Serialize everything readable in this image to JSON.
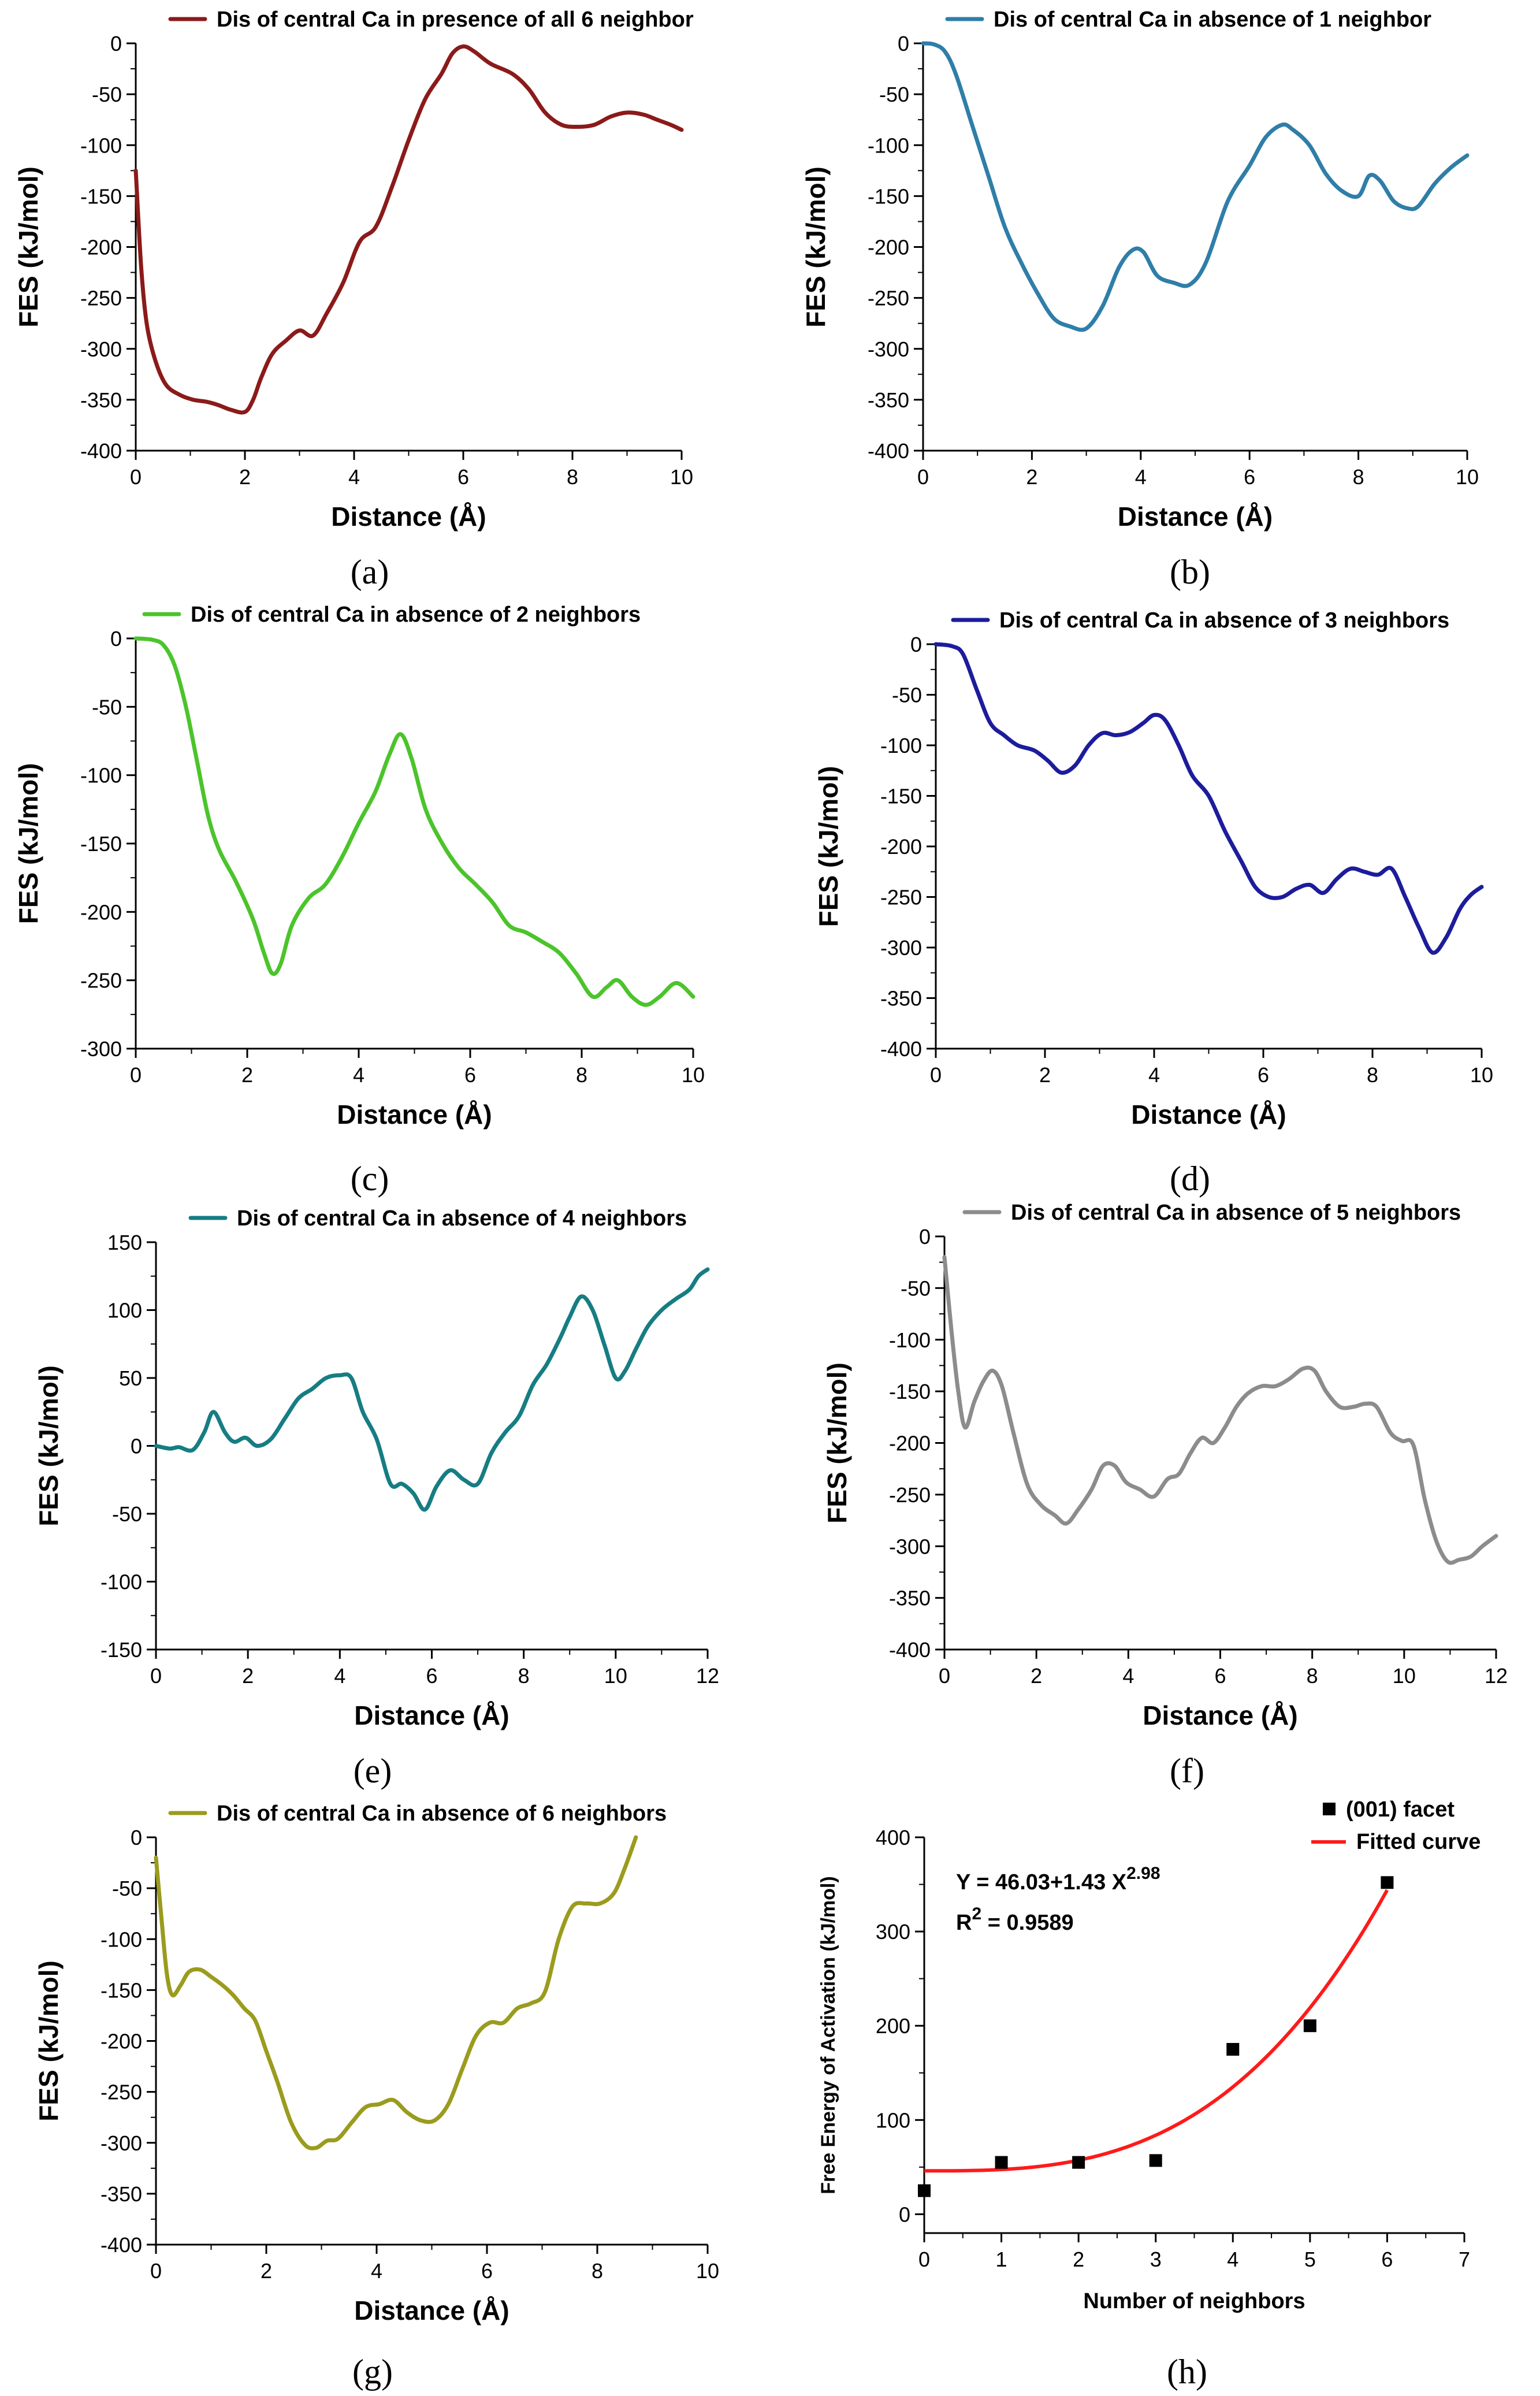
{
  "chart_data": [
    {
      "panel": "a",
      "caption": "(a)",
      "type": "line",
      "color": "#8b1a1a",
      "legend": "Dis of central Ca in presence of all 6 neighbor",
      "xlabel": "Distance (Å)",
      "ylabel": "FES (kJ/mol)",
      "xlim": [
        0,
        10
      ],
      "ylim": [
        -400,
        0
      ],
      "xticks": [
        0,
        2,
        4,
        6,
        8,
        10
      ],
      "yticks": [
        -400,
        -350,
        -300,
        -250,
        -200,
        -150,
        -100,
        -50,
        0
      ],
      "x": [
        0,
        0.1,
        0.2,
        0.35,
        0.55,
        0.8,
        1.05,
        1.3,
        1.5,
        1.75,
        2.0,
        2.15,
        2.3,
        2.5,
        2.75,
        3.0,
        3.25,
        3.5,
        3.8,
        4.1,
        4.4,
        4.7,
        5.0,
        5.3,
        5.6,
        5.8,
        6.0,
        6.2,
        6.5,
        6.9,
        7.2,
        7.5,
        7.8,
        8.1,
        8.4,
        8.7,
        9.0,
        9.3,
        9.55,
        9.8,
        10.0
      ],
      "y": [
        -125,
        -220,
        -275,
        -310,
        -335,
        -345,
        -350,
        -352,
        -355,
        -360,
        -362,
        -350,
        -328,
        -305,
        -292,
        -282,
        -287,
        -265,
        -235,
        -195,
        -180,
        -140,
        -95,
        -55,
        -30,
        -10,
        -3,
        -8,
        -20,
        -30,
        -45,
        -68,
        -80,
        -82,
        -80,
        -72,
        -68,
        -70,
        -75,
        -80,
        -85
      ]
    },
    {
      "panel": "b",
      "caption": "(b)",
      "type": "line",
      "color": "#2f7ea8",
      "legend": "Dis of central Ca in absence of 1 neighbor",
      "xlabel": "Distance (Å)",
      "ylabel": "FES (kJ/mol)",
      "xlim": [
        0,
        10
      ],
      "ylim": [
        -400,
        0
      ],
      "xticks": [
        0,
        2,
        4,
        6,
        8,
        10
      ],
      "yticks": [
        -400,
        -350,
        -300,
        -250,
        -200,
        -150,
        -100,
        -50,
        0
      ],
      "x": [
        0,
        0.2,
        0.4,
        0.6,
        0.9,
        1.2,
        1.5,
        1.8,
        2.1,
        2.4,
        2.7,
        3.0,
        3.3,
        3.6,
        3.85,
        4.05,
        4.3,
        4.6,
        4.9,
        5.2,
        5.6,
        6.0,
        6.3,
        6.6,
        6.8,
        7.1,
        7.4,
        7.7,
        8.0,
        8.2,
        8.4,
        8.65,
        8.9,
        9.1,
        9.4,
        9.7,
        10.0
      ],
      "y": [
        0,
        -1,
        -8,
        -30,
        -80,
        -130,
        -180,
        -215,
        -245,
        -270,
        -278,
        -280,
        -258,
        -220,
        -203,
        -205,
        -228,
        -235,
        -237,
        -215,
        -155,
        -120,
        -92,
        -80,
        -85,
        -100,
        -128,
        -145,
        -150,
        -130,
        -135,
        -155,
        -162,
        -160,
        -138,
        -122,
        -110
      ]
    },
    {
      "panel": "c",
      "caption": "(c)",
      "type": "line",
      "color": "#4bc42b",
      "legend": "Dis of central Ca in absence of 2 neighbors",
      "xlabel": "Distance (Å)",
      "ylabel": "FES (kJ/mol)",
      "xlim": [
        0,
        10
      ],
      "ylim": [
        -300,
        0
      ],
      "xticks": [
        0,
        2,
        4,
        6,
        8,
        10
      ],
      "yticks": [
        -300,
        -250,
        -200,
        -150,
        -100,
        -50,
        0
      ],
      "x": [
        0,
        0.3,
        0.5,
        0.7,
        0.9,
        1.1,
        1.3,
        1.5,
        1.8,
        2.1,
        2.3,
        2.45,
        2.6,
        2.8,
        3.1,
        3.4,
        3.7,
        4.0,
        4.3,
        4.55,
        4.75,
        4.95,
        5.2,
        5.5,
        5.8,
        6.1,
        6.4,
        6.7,
        7.0,
        7.3,
        7.6,
        7.9,
        8.2,
        8.45,
        8.65,
        8.9,
        9.15,
        9.4,
        9.7,
        10.0
      ],
      "y": [
        0,
        -1,
        -5,
        -20,
        -50,
        -90,
        -130,
        -155,
        -178,
        -205,
        -230,
        -245,
        -238,
        -210,
        -190,
        -180,
        -160,
        -135,
        -112,
        -85,
        -70,
        -88,
        -125,
        -150,
        -168,
        -180,
        -193,
        -210,
        -215,
        -222,
        -230,
        -245,
        -262,
        -255,
        -250,
        -262,
        -268,
        -262,
        -252,
        -262
      ]
    },
    {
      "panel": "d",
      "caption": "(d)",
      "type": "line",
      "color": "#1c1c9c",
      "legend": "Dis of central Ca in absence of 3 neighbors",
      "xlabel": "Distance (Å)",
      "ylabel": "FES (kJ/mol)",
      "xlim": [
        0,
        10
      ],
      "ylim": [
        -400,
        0
      ],
      "xticks": [
        0,
        2,
        4,
        6,
        8,
        10
      ],
      "yticks": [
        -400,
        -350,
        -300,
        -250,
        -200,
        -150,
        -100,
        -50,
        0
      ],
      "x": [
        0,
        0.3,
        0.5,
        0.75,
        1.0,
        1.25,
        1.5,
        1.8,
        2.05,
        2.3,
        2.55,
        2.8,
        3.05,
        3.3,
        3.55,
        3.8,
        4.0,
        4.2,
        4.45,
        4.7,
        5.0,
        5.3,
        5.6,
        5.85,
        6.1,
        6.35,
        6.6,
        6.85,
        7.1,
        7.35,
        7.6,
        7.85,
        8.1,
        8.35,
        8.6,
        8.85,
        9.1,
        9.35,
        9.6,
        9.8,
        10.0
      ],
      "y": [
        0,
        -2,
        -10,
        -45,
        -78,
        -90,
        -100,
        -105,
        -115,
        -127,
        -120,
        -100,
        -88,
        -90,
        -87,
        -78,
        -70,
        -75,
        -100,
        -130,
        -150,
        -185,
        -215,
        -240,
        -250,
        -250,
        -242,
        -238,
        -246,
        -232,
        -222,
        -225,
        -228,
        -222,
        -250,
        -280,
        -305,
        -290,
        -262,
        -248,
        -240
      ]
    },
    {
      "panel": "e",
      "caption": "(e)",
      "type": "line",
      "color": "#167d83",
      "legend": "Dis of central Ca in absence of 4 neighbors",
      "xlabel": "Distance (Å)",
      "ylabel": "FES (kJ/mol)",
      "xlim": [
        0,
        12
      ],
      "ylim": [
        -150,
        150
      ],
      "xticks": [
        0,
        2,
        4,
        6,
        8,
        10,
        12
      ],
      "yticks": [
        -150,
        -100,
        -50,
        0,
        50,
        100,
        150
      ],
      "x": [
        0,
        0.3,
        0.5,
        0.8,
        1.05,
        1.25,
        1.5,
        1.7,
        1.95,
        2.2,
        2.5,
        2.8,
        3.1,
        3.4,
        3.7,
        4.0,
        4.25,
        4.5,
        4.8,
        5.1,
        5.35,
        5.6,
        5.85,
        6.1,
        6.4,
        6.7,
        7.0,
        7.3,
        7.6,
        7.9,
        8.2,
        8.5,
        8.8,
        9.0,
        9.25,
        9.5,
        9.75,
        10.0,
        10.2,
        10.45,
        10.7,
        11.0,
        11.3,
        11.6,
        11.8,
        12.0
      ],
      "y": [
        0,
        -2,
        -1,
        -3,
        10,
        25,
        10,
        3,
        6,
        0,
        5,
        20,
        35,
        42,
        50,
        52,
        50,
        25,
        5,
        -28,
        -28,
        -35,
        -47,
        -30,
        -18,
        -25,
        -28,
        -5,
        10,
        22,
        45,
        60,
        80,
        95,
        110,
        100,
        75,
        50,
        55,
        72,
        88,
        100,
        108,
        115,
        125,
        130
      ]
    },
    {
      "panel": "f",
      "caption": "(f)",
      "type": "line",
      "color": "#8c8c8c",
      "legend": "Dis of central Ca in absence of 5 neighbors",
      "xlabel": "Distance (Å)",
      "ylabel": "FES (kJ/mol)",
      "xlim": [
        0,
        12
      ],
      "ylim": [
        -400,
        0
      ],
      "xticks": [
        0,
        2,
        4,
        6,
        8,
        10,
        12
      ],
      "yticks": [
        -400,
        -350,
        -300,
        -250,
        -200,
        -150,
        -100,
        -50,
        0
      ],
      "x": [
        0,
        0.15,
        0.3,
        0.45,
        0.65,
        0.85,
        1.05,
        1.25,
        1.5,
        1.8,
        2.1,
        2.4,
        2.65,
        2.9,
        3.2,
        3.45,
        3.7,
        3.95,
        4.25,
        4.55,
        4.85,
        5.1,
        5.35,
        5.6,
        5.85,
        6.1,
        6.35,
        6.6,
        6.9,
        7.2,
        7.5,
        7.8,
        8.05,
        8.3,
        8.6,
        8.9,
        9.15,
        9.4,
        9.7,
        9.95,
        10.2,
        10.45,
        10.7,
        10.95,
        11.2,
        11.45,
        11.7,
        12.0
      ],
      "y": [
        -20,
        -90,
        -150,
        -185,
        -160,
        -140,
        -130,
        -145,
        -190,
        -240,
        -260,
        -270,
        -278,
        -265,
        -245,
        -222,
        -222,
        -238,
        -245,
        -252,
        -235,
        -230,
        -210,
        -195,
        -200,
        -185,
        -165,
        -152,
        -145,
        -145,
        -138,
        -128,
        -130,
        -150,
        -165,
        -165,
        -162,
        -165,
        -190,
        -198,
        -202,
        -255,
        -295,
        -315,
        -313,
        -310,
        -300,
        -290
      ]
    },
    {
      "panel": "g",
      "caption": "(g)",
      "type": "line",
      "color": "#9b9b1e",
      "legend": "Dis of central Ca in absence of 6 neighbors",
      "xlabel": "Distance (Å)",
      "ylabel": "FES (kJ/mol)",
      "xlim": [
        0,
        10
      ],
      "ylim": [
        -400,
        0
      ],
      "xticks": [
        0,
        2,
        4,
        6,
        8,
        10
      ],
      "yticks": [
        -400,
        -350,
        -300,
        -250,
        -200,
        -150,
        -100,
        -50,
        0
      ],
      "x": [
        0,
        0.1,
        0.2,
        0.3,
        0.45,
        0.6,
        0.8,
        1.0,
        1.2,
        1.4,
        1.6,
        1.8,
        2.0,
        2.2,
        2.45,
        2.7,
        2.9,
        3.1,
        3.3,
        3.55,
        3.8,
        4.05,
        4.3,
        4.55,
        4.8,
        5.05,
        5.3,
        5.55,
        5.8,
        6.05,
        6.3,
        6.55,
        6.8,
        7.05,
        7.3,
        7.55,
        7.8,
        8.05,
        8.3,
        8.5,
        8.7
      ],
      "y": [
        -20,
        -80,
        -135,
        -155,
        -145,
        -132,
        -130,
        -137,
        -145,
        -155,
        -168,
        -180,
        -210,
        -240,
        -280,
        -302,
        -305,
        -298,
        -296,
        -280,
        -265,
        -262,
        -258,
        -270,
        -278,
        -278,
        -262,
        -228,
        -195,
        -182,
        -182,
        -168,
        -163,
        -152,
        -100,
        -68,
        -65,
        -65,
        -55,
        -30,
        0
      ]
    },
    {
      "panel": "h",
      "caption": "(h)",
      "type": "scatter",
      "xlabel": "Number of neighbors",
      "ylabel": "Free Energy of Activation (kJ/mol)",
      "xlim": [
        0,
        7
      ],
      "ylim": [
        -20,
        400
      ],
      "xticks": [
        0,
        1,
        2,
        3,
        4,
        5,
        6,
        7
      ],
      "yticks": [
        0,
        100,
        200,
        300,
        400
      ],
      "series": [
        {
          "name": "(001) facet",
          "x": [
            0,
            1,
            2,
            3,
            4,
            5,
            6
          ],
          "y": [
            25,
            55,
            55,
            57,
            175,
            200,
            352
          ],
          "color": "#000000"
        }
      ],
      "fit": {
        "name": "Fitted curve",
        "a": 46.03,
        "b": 1.43,
        "c": 2.98,
        "xrange": [
          0,
          6
        ],
        "color": "#ff1a1a"
      },
      "equation": {
        "prefix": "Y = 46.03+1.43 X",
        "exponent": "2.98",
        "r2_prefix": "R",
        "r2_exponent": "2",
        "r2_value": " = 0.9589"
      }
    }
  ]
}
